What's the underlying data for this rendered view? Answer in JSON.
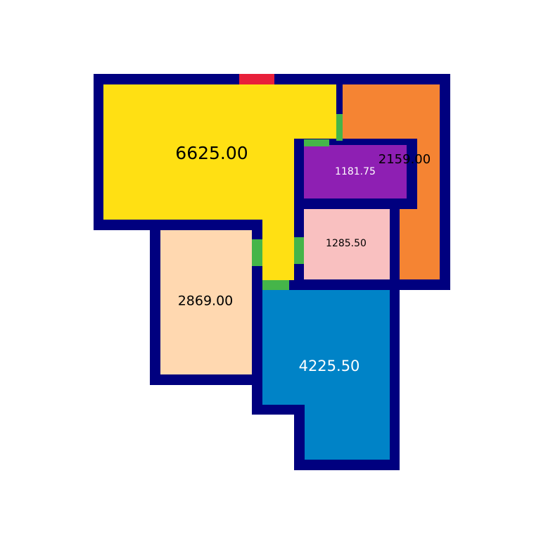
{
  "colors": {
    "wall": "#00007f",
    "door": "#45b549",
    "entrance": "#e8203a",
    "background": "#ffffff"
  },
  "rooms": [
    {
      "id": "room-6625",
      "area_label": "6625.00",
      "fill": "#ffe013",
      "text_color": "#000000"
    },
    {
      "id": "room-2159",
      "area_label": "2159.00",
      "fill": "#f58433",
      "text_color": "#000000"
    },
    {
      "id": "room-1181",
      "area_label": "1181.75",
      "fill": "#8e1fb3",
      "text_color": "#ffffff"
    },
    {
      "id": "room-1285",
      "area_label": "1285.50",
      "fill": "#f9c0c0",
      "text_color": "#000000"
    },
    {
      "id": "room-2869",
      "area_label": "2869.00",
      "fill": "#ffd8b0",
      "text_color": "#000000"
    },
    {
      "id": "room-4225",
      "area_label": "4225.50",
      "fill": "#0083c7",
      "text_color": "#ffffff"
    }
  ]
}
